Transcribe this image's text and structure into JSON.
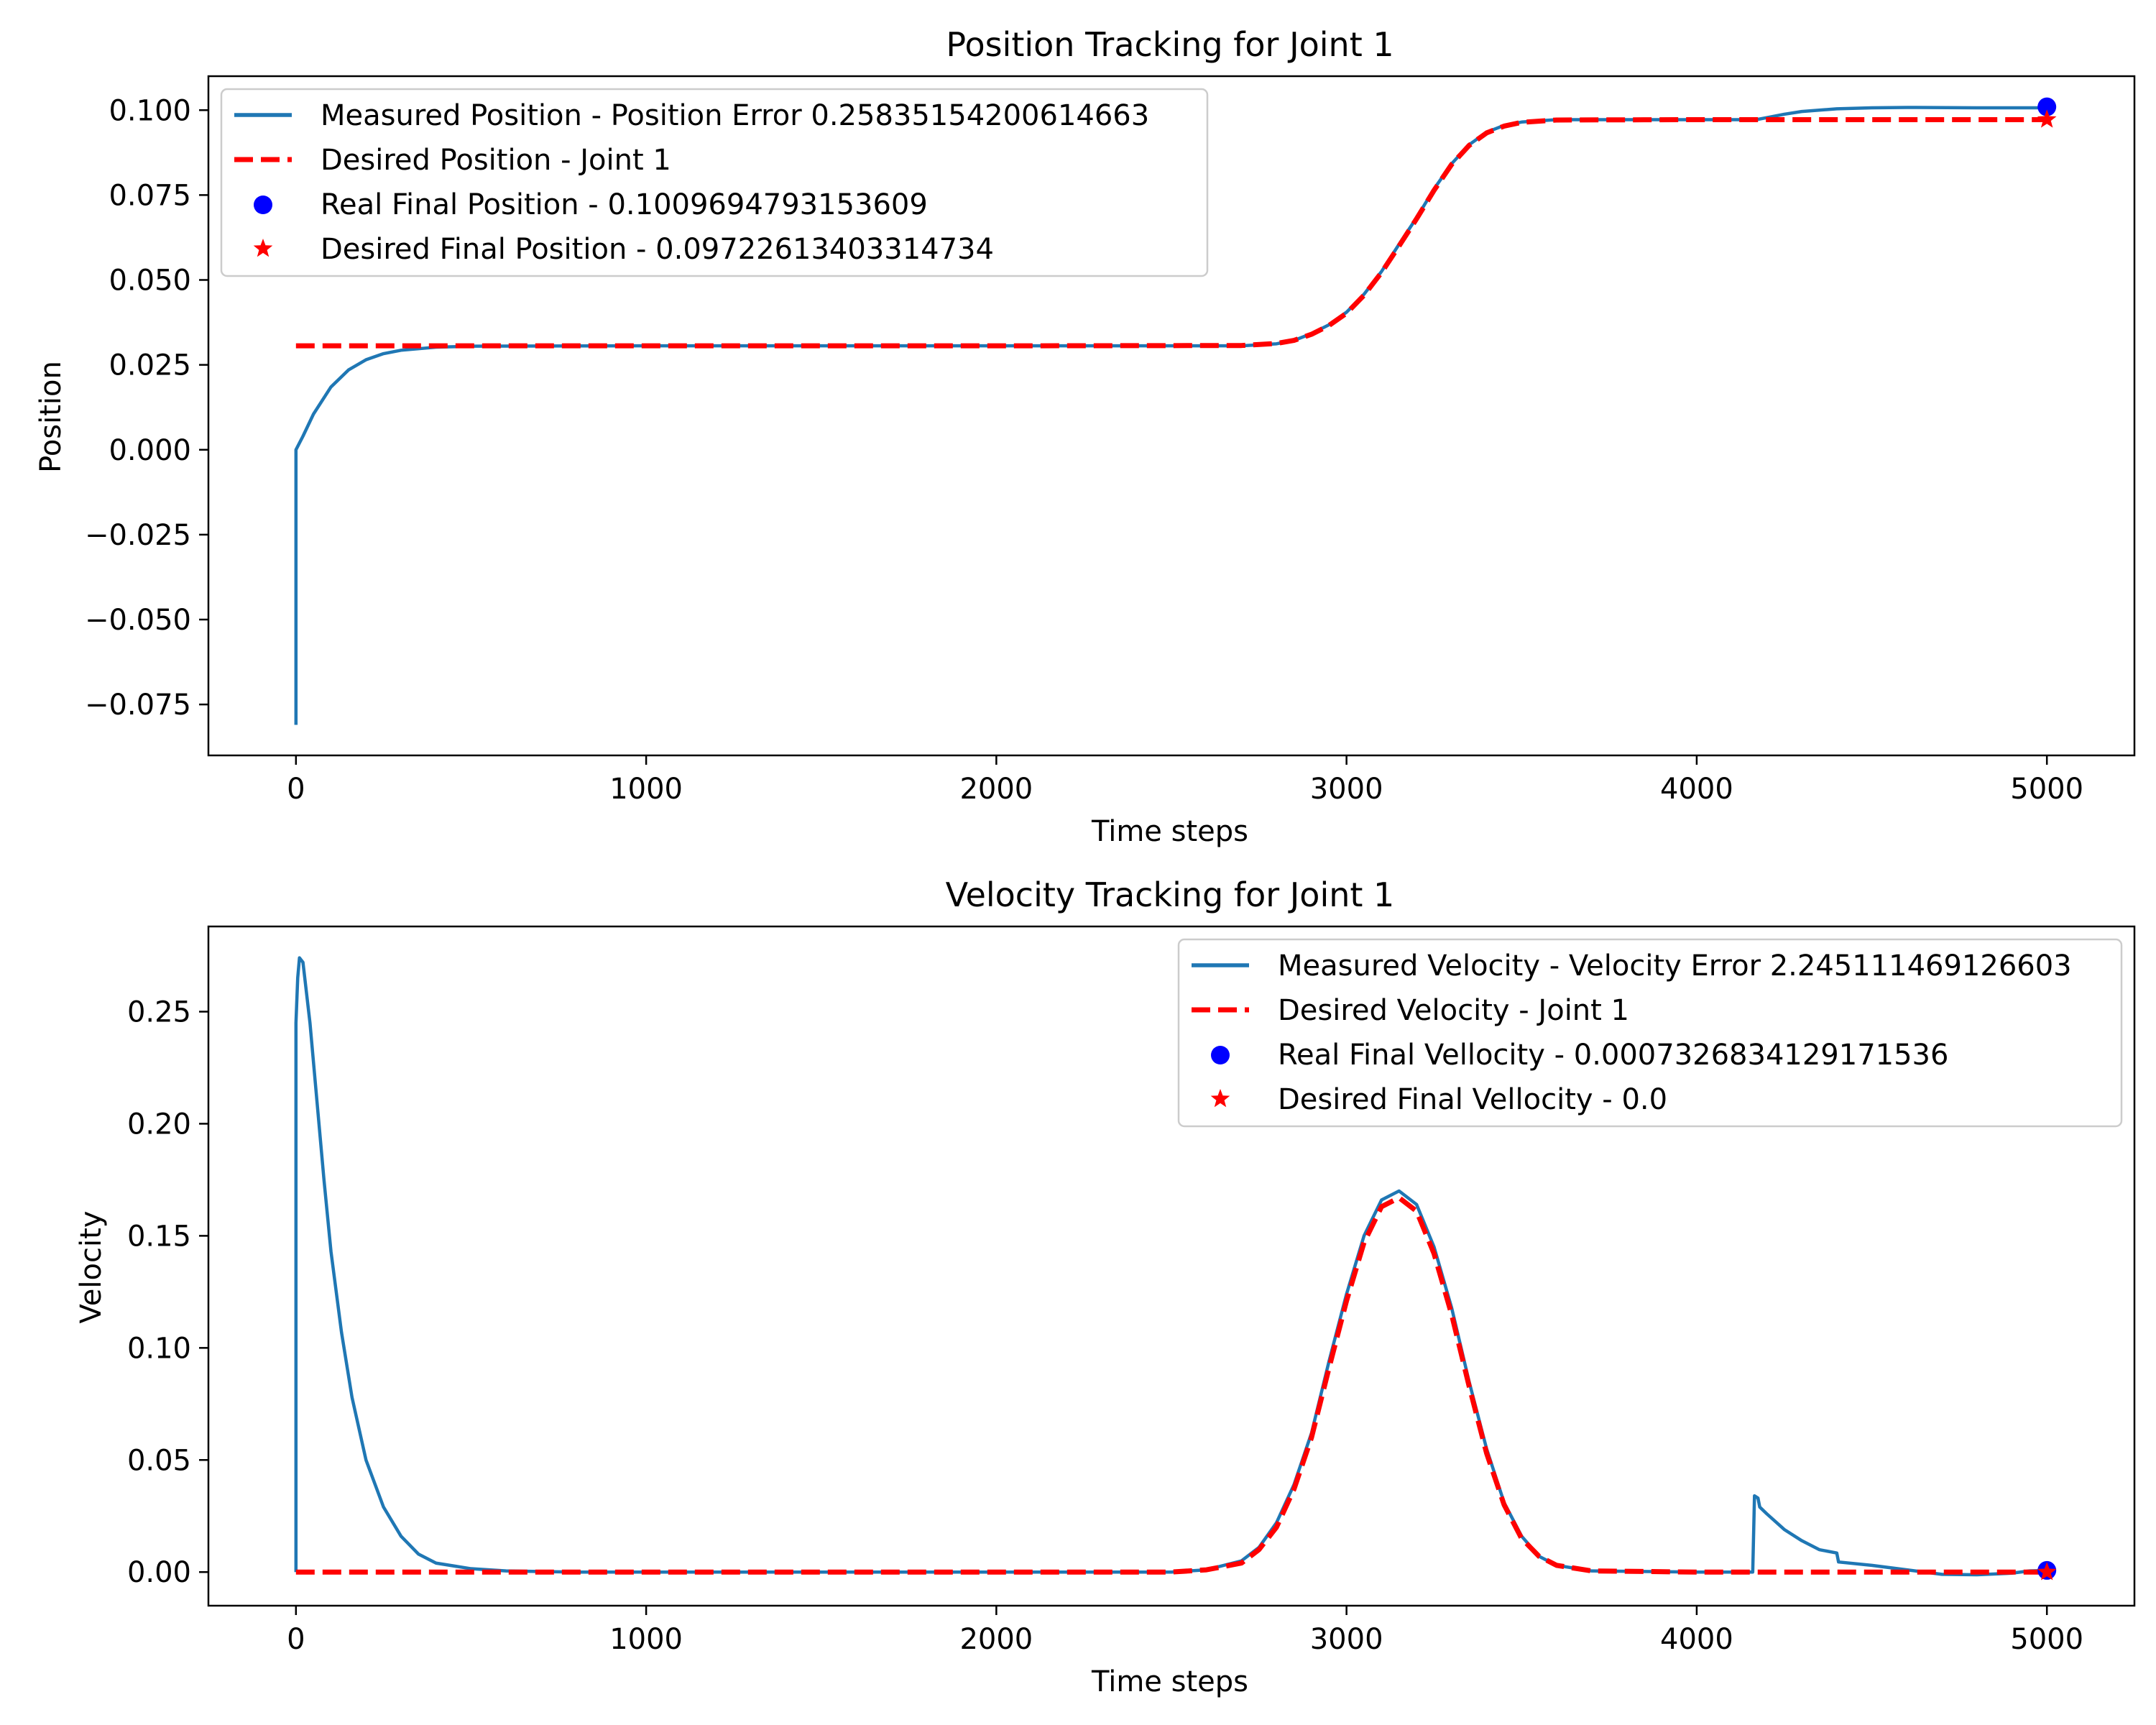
{
  "chart_data": [
    {
      "type": "line",
      "title": "Position Tracking for Joint 1",
      "xlabel": "Time steps",
      "ylabel": "Position",
      "xlim": [
        -250,
        5250
      ],
      "ylim": [
        -0.09,
        0.11
      ],
      "xticks": [
        0,
        1000,
        2000,
        3000,
        4000,
        5000
      ],
      "xtick_labels": [
        "0",
        "1000",
        "2000",
        "3000",
        "4000",
        "5000"
      ],
      "yticks": [
        -0.075,
        -0.05,
        -0.025,
        0.0,
        0.025,
        0.05,
        0.075,
        0.1
      ],
      "ytick_labels": [
        "−0.075",
        "−0.050",
        "−0.025",
        "0.000",
        "0.025",
        "0.050",
        "0.075",
        "0.100"
      ],
      "grid": false,
      "legend_position": "upper left",
      "series": [
        {
          "name": "Measured Position - Position Error 0.25835154200614663",
          "kind": "line",
          "color": "#1f77b4",
          "style": "solid",
          "x": [
            0,
            0,
            20,
            50,
            100,
            150,
            200,
            250,
            300,
            400,
            500,
            1000,
            2000,
            2700,
            2800,
            2850,
            2900,
            2950,
            3000,
            3050,
            3100,
            3150,
            3200,
            3250,
            3300,
            3350,
            3400,
            3450,
            3500,
            3600,
            4000,
            4170,
            4200,
            4250,
            4300,
            4400,
            4500,
            4600,
            4800,
            5000
          ],
          "y": [
            -0.081,
            0.0,
            0.004,
            0.0105,
            0.0185,
            0.0235,
            0.0265,
            0.0283,
            0.0293,
            0.0302,
            0.0305,
            0.0306,
            0.0306,
            0.0306,
            0.0312,
            0.0322,
            0.0342,
            0.0368,
            0.0405,
            0.0458,
            0.0525,
            0.0605,
            0.0683,
            0.0768,
            0.0842,
            0.0898,
            0.0935,
            0.0955,
            0.0965,
            0.0972,
            0.0972,
            0.0972,
            0.0978,
            0.0988,
            0.0996,
            0.1004,
            0.1007,
            0.1008,
            0.1007,
            0.1007
          ]
        },
        {
          "name": "Desired Position - Joint 1",
          "kind": "line",
          "color": "#ff0000",
          "style": "dashed",
          "x": [
            0,
            1000,
            2000,
            2700,
            2800,
            2850,
            2900,
            2950,
            3000,
            3050,
            3100,
            3150,
            3200,
            3250,
            3300,
            3350,
            3400,
            3450,
            3500,
            3600,
            4000,
            5000
          ],
          "y": [
            0.0306,
            0.0306,
            0.0306,
            0.0307,
            0.0313,
            0.0322,
            0.034,
            0.0366,
            0.0402,
            0.0455,
            0.0522,
            0.06,
            0.068,
            0.0764,
            0.084,
            0.0896,
            0.0933,
            0.0953,
            0.0964,
            0.0971,
            0.0972,
            0.0972
          ]
        },
        {
          "name": "Real Final Position - 0.1009694793153609",
          "kind": "point",
          "marker": "circle",
          "color": "#0000ff",
          "x": [
            5000
          ],
          "y": [
            0.1009694793153609
          ]
        },
        {
          "name": "Desired Final Position - 0.09722613403314734",
          "kind": "point",
          "marker": "star",
          "color": "#ff0000",
          "x": [
            5000
          ],
          "y": [
            0.09722613403314734
          ]
        }
      ]
    },
    {
      "type": "line",
      "title": "Velocity Tracking for Joint 1",
      "xlabel": "Time steps",
      "ylabel": "Velocity",
      "xlim": [
        -250,
        5250
      ],
      "ylim": [
        -0.015,
        0.288
      ],
      "xticks": [
        0,
        1000,
        2000,
        3000,
        4000,
        5000
      ],
      "xtick_labels": [
        "0",
        "1000",
        "2000",
        "3000",
        "4000",
        "5000"
      ],
      "yticks": [
        0.0,
        0.05,
        0.1,
        0.15,
        0.2,
        0.25
      ],
      "ytick_labels": [
        "0.00",
        "0.05",
        "0.10",
        "0.15",
        "0.20",
        "0.25"
      ],
      "grid": false,
      "legend_position": "upper right",
      "series": [
        {
          "name": "Measured Velocity - Velocity Error 2.245111469126603",
          "kind": "line",
          "color": "#1f77b4",
          "style": "solid",
          "x": [
            0,
            0,
            5,
            10,
            20,
            40,
            60,
            80,
            100,
            130,
            160,
            200,
            250,
            300,
            350,
            400,
            500,
            600,
            800,
            1000,
            2500,
            2600,
            2700,
            2750,
            2800,
            2850,
            2900,
            2950,
            3000,
            3050,
            3100,
            3150,
            3200,
            3250,
            3300,
            3350,
            3400,
            3450,
            3500,
            3550,
            3600,
            3700,
            4000,
            4160,
            4165,
            4175,
            4180,
            4200,
            4250,
            4300,
            4350,
            4400,
            4405,
            4500,
            4600,
            4700,
            4800,
            4900,
            4950,
            5000
          ],
          "y": [
            0.0,
            0.245,
            0.265,
            0.274,
            0.272,
            0.245,
            0.21,
            0.175,
            0.143,
            0.107,
            0.078,
            0.05,
            0.029,
            0.016,
            0.008,
            0.004,
            0.0015,
            0.0005,
            0.0,
            0.0,
            0.0,
            0.001,
            0.005,
            0.011,
            0.022,
            0.039,
            0.062,
            0.094,
            0.124,
            0.15,
            0.166,
            0.17,
            0.164,
            0.145,
            0.118,
            0.085,
            0.055,
            0.031,
            0.016,
            0.007,
            0.003,
            0.0005,
            0.0,
            0.0,
            0.034,
            0.033,
            0.029,
            0.026,
            0.019,
            0.014,
            0.01,
            0.0085,
            0.0045,
            0.003,
            0.001,
            -0.001,
            -0.0012,
            -0.0005,
            0.0005,
            0.0007
          ]
        },
        {
          "name": "Desired Velocity - Joint 1",
          "kind": "line",
          "color": "#ff0000",
          "style": "dashed",
          "x": [
            0,
            1000,
            2500,
            2600,
            2700,
            2750,
            2800,
            2850,
            2900,
            2950,
            3000,
            3050,
            3100,
            3150,
            3200,
            3250,
            3300,
            3350,
            3400,
            3450,
            3500,
            3550,
            3600,
            3700,
            4000,
            5000
          ],
          "y": [
            0.0,
            0.0,
            0.0,
            0.001,
            0.004,
            0.01,
            0.02,
            0.037,
            0.06,
            0.091,
            0.121,
            0.147,
            0.163,
            0.167,
            0.161,
            0.142,
            0.115,
            0.083,
            0.053,
            0.03,
            0.015,
            0.007,
            0.003,
            0.0005,
            0.0,
            0.0
          ]
        },
        {
          "name": "Real Final Vellocity - 0.0007326834129171536",
          "kind": "point",
          "marker": "circle",
          "color": "#0000ff",
          "x": [
            5000
          ],
          "y": [
            0.0007326834129171536
          ]
        },
        {
          "name": "Desired Final Vellocity - 0.0",
          "kind": "point",
          "marker": "star",
          "color": "#ff0000",
          "x": [
            5000
          ],
          "y": [
            0.0
          ]
        }
      ]
    }
  ]
}
